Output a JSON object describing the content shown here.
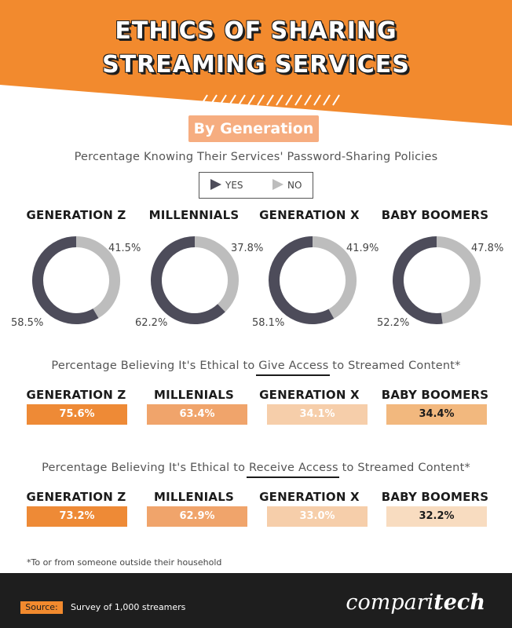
{
  "header": {
    "title_line1": "ETHICS OF SHARING",
    "title_line2": "STREAMING SERVICES",
    "badge": "By Generation"
  },
  "colors": {
    "orange": "#f28a2e",
    "ring_yes": "#4d4c5a",
    "ring_no": "#bdbdbd",
    "badge": "#f6ad80",
    "footer": "#1e1e1e"
  },
  "chart_data": [
    {
      "type": "pie",
      "title": "Percentage Knowing Their Services' Password-Sharing Policies",
      "legend": [
        "YES",
        "NO"
      ],
      "categories": [
        "GENERATION Z",
        "MILLENNIALS",
        "GENERATION X",
        "BABY BOOMERS"
      ],
      "series": [
        {
          "name": "YES",
          "values": [
            58.5,
            62.2,
            58.1,
            52.2
          ],
          "labels": [
            "58.5%",
            "62.2%",
            "58.1%",
            "52.2%"
          ]
        },
        {
          "name": "NO",
          "values": [
            41.5,
            37.8,
            41.9,
            47.8
          ],
          "labels": [
            "41.5%",
            "37.8%",
            "41.9%",
            "47.8%"
          ]
        }
      ]
    },
    {
      "type": "table",
      "title_before": "Percentage Believing It's Ethical to ",
      "title_emphasis": "Give Access",
      "title_after": " to Streamed Content*",
      "categories": [
        "GENERATION Z",
        "MILLENIALS",
        "GENERATION X",
        "BABY BOOMERS"
      ],
      "values": [
        75.6,
        63.4,
        34.1,
        34.4
      ],
      "labels": [
        "75.6%",
        "63.4%",
        "34.1%",
        "34.4%"
      ],
      "bar_colors": [
        "#ee8a36",
        "#f0a46b",
        "#f6ceaa",
        "#f2b87e"
      ]
    },
    {
      "type": "table",
      "title_before": "Percentage Believing It's Ethical to ",
      "title_emphasis": "Receive Access",
      "title_after": " to Streamed Content*",
      "categories": [
        "GENERATION Z",
        "MILLENIALS",
        "GENERATION X",
        "BABY BOOMERS"
      ],
      "values": [
        73.2,
        62.9,
        33.0,
        32.2
      ],
      "labels": [
        "73.2%",
        "62.9%",
        "33.0%",
        "32.2%"
      ],
      "bar_colors": [
        "#ee8a36",
        "#f0a46b",
        "#f6ceaa",
        "#f8dcc0"
      ]
    }
  ],
  "footnote": "*To or from someone outside their household",
  "footer": {
    "source_label": "Source:",
    "source_text": "Survey of 1,000 streamers",
    "brand_regular": "compari",
    "brand_bold": "tech"
  }
}
